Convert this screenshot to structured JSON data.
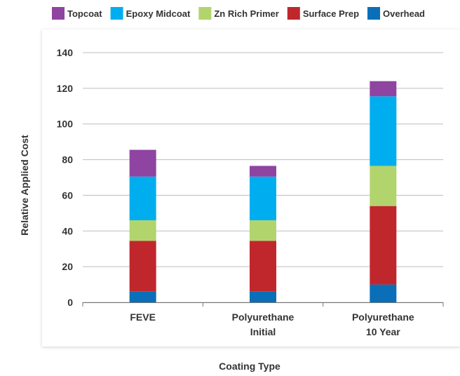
{
  "chart_data": {
    "type": "bar",
    "stacked": true,
    "categories": [
      [
        "FEVE"
      ],
      [
        "Polyurethane",
        "Initial"
      ],
      [
        "Polyurethane",
        "10 Year"
      ]
    ],
    "series": [
      {
        "name": "Overhead",
        "color": "#0a6fb8",
        "values": [
          6,
          6,
          10
        ]
      },
      {
        "name": "Surface Prep",
        "color": "#c0272d",
        "values": [
          28.5,
          28.5,
          44
        ]
      },
      {
        "name": "Zn Rich Primer",
        "color": "#b2d46d",
        "values": [
          11.5,
          11.5,
          22.5
        ]
      },
      {
        "name": "Epoxy Midcoat",
        "color": "#00aeef",
        "values": [
          24.5,
          24.5,
          39
        ]
      },
      {
        "name": "Topcoat",
        "color": "#8e44a0",
        "values": [
          15,
          6,
          8.5
        ]
      }
    ],
    "legend_order": [
      "Topcoat",
      "Epoxy Midcoat",
      "Zn Rich Primer",
      "Surface Prep",
      "Overhead"
    ],
    "xlabel": "Coating Type",
    "ylabel": "Relative Applied Cost",
    "ylim": [
      0,
      140
    ],
    "yticks": [
      0,
      20,
      40,
      60,
      80,
      100,
      120,
      140
    ],
    "grid": true,
    "legend_position": "top"
  }
}
